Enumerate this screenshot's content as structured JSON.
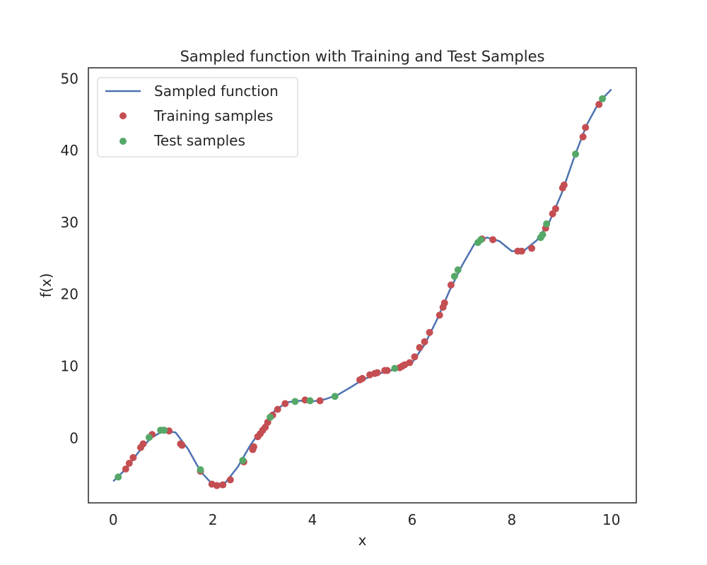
{
  "chart_data": {
    "type": "line+scatter",
    "title": "Sampled function with Training and Test Samples",
    "xlabel": "x",
    "ylabel": "f(x)",
    "xlim": [
      -0.5,
      10.5
    ],
    "ylim": [
      -9,
      51.5
    ],
    "xticks": [
      0,
      2,
      4,
      6,
      8,
      10
    ],
    "yticks": [
      0,
      10,
      20,
      30,
      40,
      50
    ],
    "grid": false,
    "legend_position": "top-left",
    "colors": {
      "line": "#4c72b0",
      "training": "#c44e52",
      "test": "#55a868",
      "axes": "#262626"
    },
    "series": [
      {
        "name": "Sampled function",
        "kind": "line",
        "x": [
          0.0,
          0.25,
          0.5,
          0.75,
          1.0,
          1.25,
          1.5,
          1.75,
          2.0,
          2.25,
          2.5,
          2.75,
          3.0,
          3.25,
          3.5,
          3.75,
          4.0,
          4.25,
          4.5,
          4.75,
          5.0,
          5.25,
          5.5,
          5.75,
          6.0,
          6.25,
          6.5,
          6.75,
          7.0,
          7.25,
          7.5,
          7.75,
          8.0,
          8.25,
          8.5,
          8.75,
          9.0,
          9.25,
          9.5,
          9.75,
          10.0
        ],
        "y": [
          -6.0,
          -4.3,
          -2.0,
          0.0,
          1.0,
          0.8,
          -1.5,
          -4.6,
          -6.5,
          -6.2,
          -4.0,
          -1.0,
          1.5,
          3.9,
          5.0,
          5.2,
          5.1,
          5.4,
          6.0,
          7.0,
          8.1,
          8.8,
          9.3,
          9.7,
          10.5,
          13.0,
          16.5,
          20.5,
          24.0,
          27.0,
          27.9,
          27.4,
          26.0,
          26.1,
          27.5,
          30.0,
          34.0,
          39.0,
          43.5,
          46.7,
          48.5
        ]
      },
      {
        "name": "Training samples",
        "kind": "scatter",
        "x": [
          0.25,
          0.32,
          0.4,
          0.55,
          0.6,
          0.78,
          1.12,
          1.35,
          1.38,
          1.75,
          1.98,
          2.08,
          2.2,
          2.35,
          2.62,
          2.8,
          2.82,
          2.9,
          2.95,
          3.0,
          3.05,
          3.1,
          3.2,
          3.3,
          3.45,
          3.85,
          4.15,
          4.95,
          5.0,
          5.15,
          5.25,
          5.3,
          5.45,
          5.5,
          5.75,
          5.8,
          5.85,
          5.95,
          6.05,
          6.15,
          6.25,
          6.35,
          6.55,
          6.62,
          6.65,
          6.78,
          7.4,
          7.62,
          8.12,
          8.2,
          8.4,
          8.68,
          8.82,
          8.88,
          9.02,
          9.05,
          9.43,
          9.48,
          9.75
        ],
        "y": [
          -4.3,
          -3.5,
          -2.7,
          -1.3,
          -0.8,
          0.5,
          1.0,
          -0.8,
          -1.0,
          -4.6,
          -6.4,
          -6.6,
          -6.5,
          -5.8,
          -3.3,
          -1.6,
          -1.2,
          0.2,
          0.6,
          1.1,
          1.5,
          2.2,
          3.2,
          4.0,
          4.8,
          5.3,
          5.2,
          8.1,
          8.3,
          8.8,
          9.0,
          9.1,
          9.4,
          9.4,
          9.8,
          10.0,
          10.2,
          10.5,
          11.3,
          12.6,
          13.4,
          14.7,
          17.1,
          18.2,
          18.8,
          21.3,
          27.7,
          27.6,
          26.0,
          26.0,
          26.4,
          29.2,
          31.2,
          31.9,
          34.8,
          35.2,
          41.9,
          43.2,
          46.4
        ]
      },
      {
        "name": "Test samples",
        "kind": "scatter",
        "x": [
          0.1,
          0.72,
          0.95,
          1.02,
          1.75,
          2.6,
          3.15,
          3.65,
          3.95,
          4.45,
          5.65,
          6.85,
          6.92,
          7.32,
          7.38,
          8.58,
          8.62,
          8.7,
          9.28,
          9.82
        ],
        "y": [
          -5.4,
          0.1,
          1.1,
          1.1,
          -4.4,
          -3.1,
          2.9,
          5.1,
          5.2,
          5.8,
          9.7,
          22.5,
          23.4,
          27.2,
          27.6,
          27.9,
          28.3,
          29.8,
          39.5,
          47.2
        ]
      }
    ]
  }
}
